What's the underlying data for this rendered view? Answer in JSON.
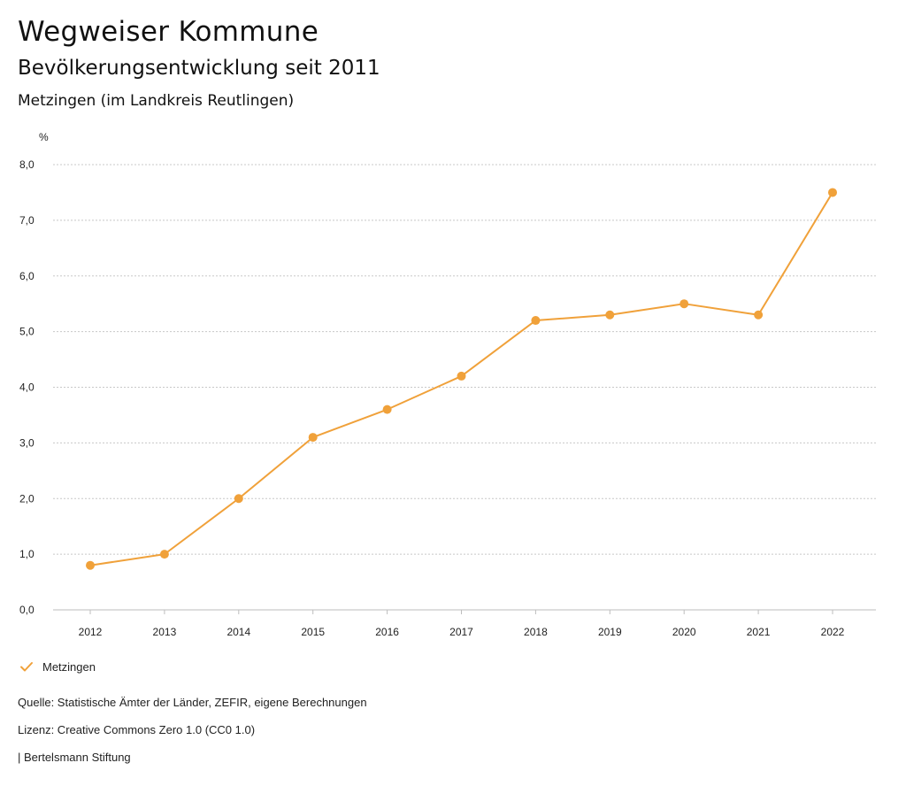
{
  "header": {
    "title": "Wegweiser Kommune",
    "subtitle": "Bevölkerungsentwicklung seit 2011",
    "region": "Metzingen (im Landkreis Reutlingen)"
  },
  "chart_data": {
    "type": "line",
    "title": "Bevölkerungsentwicklung seit 2011",
    "ylabel": "%",
    "xlabel": "",
    "categories": [
      "2012",
      "2013",
      "2014",
      "2015",
      "2016",
      "2017",
      "2018",
      "2019",
      "2020",
      "2021",
      "2022"
    ],
    "series": [
      {
        "name": "Metzingen",
        "color": "#f0a13a",
        "values": [
          0.8,
          1.0,
          2.0,
          3.1,
          3.6,
          4.2,
          5.2,
          5.3,
          5.5,
          5.3,
          7.5
        ]
      }
    ],
    "ylim": [
      0,
      8
    ],
    "yticks": [
      "0,0",
      "1,0",
      "2,0",
      "3,0",
      "4,0",
      "5,0",
      "6,0",
      "7,0",
      "8,0"
    ],
    "grid": true,
    "legend_position": "bottom-left"
  },
  "legend": {
    "label": "Metzingen",
    "icon": "check-icon"
  },
  "footer": {
    "source": "Quelle: Statistische Ämter der Länder, ZEFIR, eigene Berechnungen",
    "license": "Lizenz: Creative Commons Zero 1.0 (CC0 1.0)",
    "publisher": "| Bertelsmann Stiftung"
  }
}
